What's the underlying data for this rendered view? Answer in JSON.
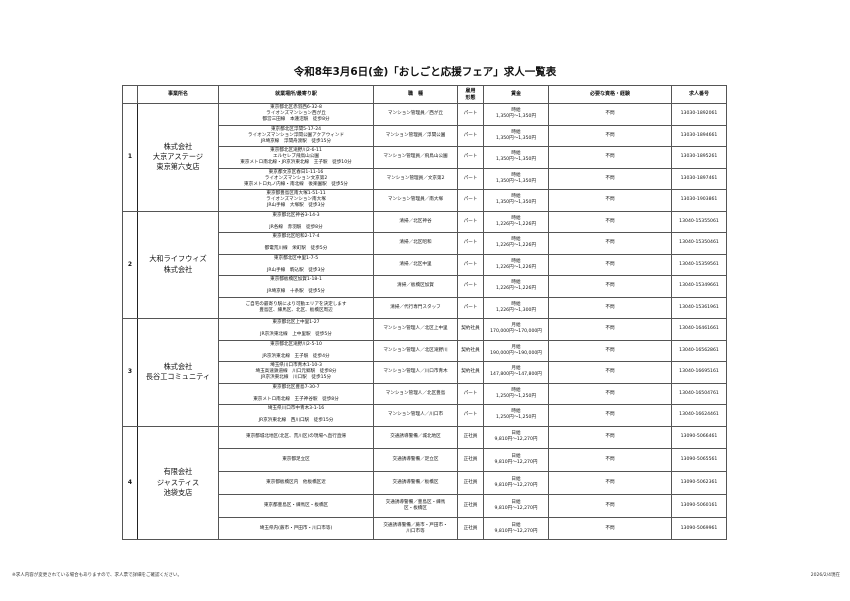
{
  "title": "令和8年3月6日(金)「おしごと応援フェア」求人一覧表",
  "headers": [
    "",
    "事業所名",
    "就業場所/最寄り駅",
    "職　種",
    "雇用\n形態",
    "賃金",
    "必要な資格・経験",
    "求人番号"
  ],
  "groups": [
    {
      "num": "1",
      "company": "株式会社\n大京アステージ\n東京第六支店",
      "rows": [
        {
          "location": "東京都北区赤羽西6-32-8\nライオンズマンション西が丘\n都営三田線　本蓮沼駅　徒歩8分",
          "job": "マンション管理員／西が丘",
          "type": "パート",
          "wage": "時給\n1,350円～1,350円",
          "qual": "不問",
          "id": "13030-1892061"
        },
        {
          "location": "東京都北区浮間5-17-24\nライオンズマンション浮間公園アクアウィンド\nJR埼京線　浮間舟渡駅　徒歩15分",
          "job": "マンション管理員／浮間公園",
          "type": "パート",
          "wage": "時給\n1,350円～1,350円",
          "qual": "不問",
          "id": "13030-1894661"
        },
        {
          "location": "東京都北区滝野川2-6-11\nエルセレブ飛鳥山公園\n東京メトロ南北線・JR京浜東北線　王子駅　徒歩10分",
          "job": "マンション管理員／飛鳥山公園",
          "type": "パート",
          "wage": "時給\n1,350円～1,350円",
          "qual": "不問",
          "id": "13030-1895261"
        },
        {
          "location": "東京都文京区春日1-11-16\nライオンズマンション文京第2\n東京メトロ丸ノ内線・南北線　後楽園駅　徒歩5分",
          "job": "マンション管理員／文京第2",
          "type": "パート",
          "wage": "時給\n1,350円～1,350円",
          "qual": "不問",
          "id": "13030-1897461"
        },
        {
          "location": "東京都豊島区南大塚1-51-11\nライオンズマンション南大塚\nJR山手線　大塚駅　徒歩3分",
          "job": "マンション管理員／南大塚",
          "type": "パート",
          "wage": "時給\n1,350円～1,350円",
          "qual": "不問",
          "id": "13030-1903861"
        }
      ]
    },
    {
      "num": "2",
      "company": "大和ライフウィズ\n株式会社",
      "rows": [
        {
          "location": "東京都北区神谷3-14-3\n\nJR各線　赤羽駅　徒歩8分",
          "job": "清掃／北区神谷",
          "type": "パート",
          "wage": "時給\n1,226円～1,226円",
          "qual": "不問",
          "id": "13040-15355061"
        },
        {
          "location": "東京都北区昭和2-17-4\n\n都電荒川線　栄町駅　徒歩5分",
          "job": "清掃／北区昭和",
          "type": "パート",
          "wage": "時給\n1,226円～1,226円",
          "qual": "不問",
          "id": "13040-15350461"
        },
        {
          "location": "東京都北区中里1-7-5\n\nJR山手線　駒込駅　徒歩3分",
          "job": "清掃／北区中里",
          "type": "パート",
          "wage": "時給\n1,226円～1,226円",
          "qual": "不問",
          "id": "13040-15359561"
        },
        {
          "location": "東京都板橋区加賀1-18-1\n\nJR埼京線　十条駅　徒歩5分",
          "job": "清掃／板橋区加賀",
          "type": "パート",
          "wage": "時給\n1,226円～1,226円",
          "qual": "不問",
          "id": "13040-15349661"
        },
        {
          "location": "ご自宅の最寄り駅により可動エリアを決定します\n豊島区、練馬区、北区、板橋区周辺",
          "job": "清掃／代行専門スタッフ",
          "type": "パート",
          "wage": "時給\n1,226円～1,300円",
          "qual": "不問",
          "id": "13040-15361961"
        }
      ]
    },
    {
      "num": "3",
      "company": "株式会社\n長谷工コミュニティ",
      "rows": [
        {
          "location": "東京都北区上中里1-27\n\nJR京浜東北線　上中里駅　徒歩5分",
          "job": "マンション管理人／北区上中里",
          "type": "契約社員",
          "wage": "月給\n170,000円～170,000円",
          "qual": "不問",
          "id": "13040-16461661"
        },
        {
          "location": "東京都北区滝野川2-5-10\n\nJR京浜東北線　王子駅　徒歩4分",
          "job": "マンション管理人／北区滝野川",
          "type": "契約社員",
          "wage": "月給\n190,000円～190,000円",
          "qual": "不問",
          "id": "13040-16562861"
        },
        {
          "location": "埼玉県川口市青木1-10-3\n埼玉高速鉄道線　川口元郷駅　徒歩8分\nJR京浜東北線　川口駅　徒歩15分",
          "job": "マンション管理人／川口市青木",
          "type": "契約社員",
          "wage": "月給\n147,800円～147,800円",
          "qual": "不問",
          "id": "13040-16695161"
        },
        {
          "location": "東京都北区豊島7-30-7\n\n東京メトロ南北線　王子神谷駅　徒歩8分",
          "job": "マンション管理人／北区豊島",
          "type": "パート",
          "wage": "時給\n1,250円～1,250円",
          "qual": "不問",
          "id": "13040-16504761"
        },
        {
          "location": "埼玉県川口市中青木3-1-16\n\nJR京浜東北線　西川口駅　徒歩15分",
          "job": "マンション管理人／川口市",
          "type": "パート",
          "wage": "時給\n1,250円～1,250円",
          "qual": "不問",
          "id": "13040-16624461"
        }
      ]
    },
    {
      "num": "4",
      "company": "有限会社\nジャスティス\n池袋支店",
      "rows": [
        {
          "location": "東京都城北地区(北区、荒川区)の現場へ直行直帰",
          "job": "交通誘導警備／城北地区",
          "type": "正社員",
          "wage": "日給\n9,810円～12,270円",
          "qual": "不問",
          "id": "13090-5066461"
        },
        {
          "location": "東京都足立区",
          "job": "交通誘導警備／足立区",
          "type": "正社員",
          "wage": "日給\n9,810円～12,270円",
          "qual": "不問",
          "id": "13090-5065561"
        },
        {
          "location": "東京都板橋区内　他板橋区近",
          "job": "交通誘導警備／板橋区",
          "type": "正社員",
          "wage": "日給\n9,810円～12,270円",
          "qual": "不問",
          "id": "13090-5062361"
        },
        {
          "location": "東京都豊島区・練馬区・板橋区",
          "job": "交通誘導警備／豊島区・練馬\n区・板橋区",
          "type": "正社員",
          "wage": "日給\n9,810円～12,270円",
          "qual": "不問",
          "id": "13090-5060161"
        },
        {
          "location": "埼玉県内(蕨市・戸田市・川口市等)",
          "job": "交通誘導警備／蕨市・戸田市・\n川口市等",
          "type": "正社員",
          "wage": "日給\n9,810円～12,270円",
          "qual": "不問",
          "id": "13090-5069961"
        }
      ]
    }
  ],
  "footer": {
    "note": "※求人内容が変更されている場合もありますので、求人票で詳細をご確認ください。",
    "date": "2026/2/4現在"
  }
}
